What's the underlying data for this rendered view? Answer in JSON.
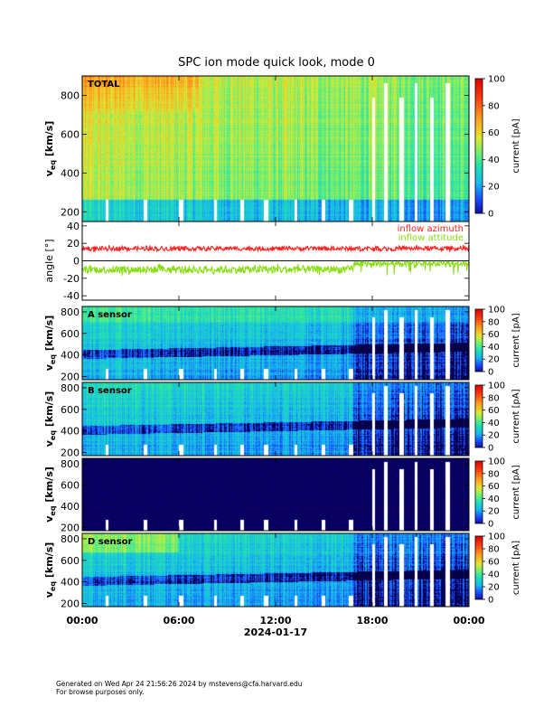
{
  "page_title": "SPC ion mode quick look, mode 0",
  "footer": {
    "line1": "Generated on Wed Apr 24 21:56:26 2024 by mstevens@cfa.harvard.edu",
    "line2": "For browse purposes only."
  },
  "chart_data": [
    {
      "type": "heatmap",
      "panel": "TOTAL",
      "label": "TOTAL",
      "ylabel_main": "v",
      "ylabel_sub": "eq",
      "ylabel_units": "[km/s]",
      "yticks": [
        200,
        400,
        600,
        800
      ],
      "ylim": [
        150,
        900
      ],
      "colorbar": {
        "label": "current [pA]",
        "ticks": [
          0,
          20,
          40,
          60,
          80,
          100
        ],
        "range": [
          0,
          100
        ]
      }
    },
    {
      "type": "line",
      "panel": "angle",
      "ylabel": "angle [°]",
      "yticks": [
        -40,
        -20,
        0,
        20,
        40
      ],
      "ylim": [
        -45,
        45
      ],
      "series": [
        {
          "name": "inflow azimuth",
          "color": "#ff2020",
          "mean": 14,
          "spread": 5
        },
        {
          "name": "inflow attitude",
          "color": "#88dd11",
          "mean": -10,
          "spread": 9
        }
      ]
    },
    {
      "type": "heatmap",
      "panel": "A",
      "label": "A sensor",
      "ylabel_main": "v",
      "ylabel_sub": "eq",
      "ylabel_units": "[km/s]",
      "yticks": [
        200,
        400,
        600,
        800
      ],
      "ylim": [
        170,
        850
      ],
      "colorbar": {
        "label": "current [pA]",
        "ticks": [
          0,
          20,
          40,
          60,
          80,
          100
        ],
        "range": [
          0,
          100
        ]
      }
    },
    {
      "type": "heatmap",
      "panel": "B",
      "label": "B sensor",
      "ylabel_main": "v",
      "ylabel_sub": "eq",
      "ylabel_units": "[km/s]",
      "yticks": [
        200,
        400,
        600,
        800
      ],
      "ylim": [
        170,
        850
      ],
      "colorbar": {
        "label": "current [pA]",
        "ticks": [
          0,
          20,
          40,
          60,
          80,
          100
        ],
        "range": [
          0,
          100
        ]
      }
    },
    {
      "type": "heatmap",
      "panel": "C",
      "label": "",
      "ylabel_main": "v",
      "ylabel_sub": "eq",
      "ylabel_units": "[km/s]",
      "yticks": [
        200,
        400,
        600,
        800
      ],
      "ylim": [
        170,
        850
      ],
      "colorbar": {
        "label": "current [pA]",
        "ticks": [
          0,
          20,
          40,
          60,
          80,
          100
        ],
        "range": [
          0,
          100
        ]
      }
    },
    {
      "type": "heatmap",
      "panel": "D",
      "label": "D sensor",
      "ylabel_main": "v",
      "ylabel_sub": "eq",
      "ylabel_units": "[km/s]",
      "yticks": [
        200,
        400,
        600,
        800
      ],
      "ylim": [
        170,
        850
      ],
      "colorbar": {
        "label": "current [pA]",
        "ticks": [
          0,
          20,
          40,
          60,
          80,
          100
        ],
        "range": [
          0,
          100
        ]
      }
    }
  ],
  "x_axis": {
    "ticks": [
      "00:00",
      "06:00",
      "12:00",
      "18:00",
      "00:00"
    ],
    "tick_hours": [
      0,
      6,
      12,
      18,
      24
    ],
    "date_label": "2024-01-17",
    "range_hours": [
      0,
      24
    ]
  }
}
